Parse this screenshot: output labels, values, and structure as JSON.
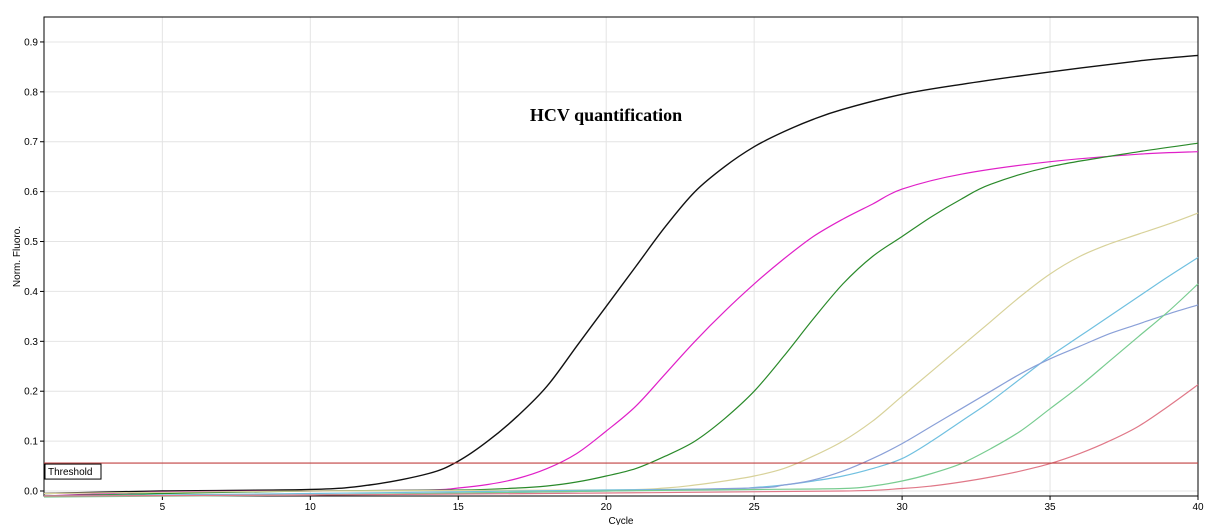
{
  "chart_data": {
    "type": "line",
    "title": "HCV quantification",
    "xlabel": "Cycle",
    "ylabel": "Norm. Fluoro.",
    "xlim": [
      1,
      40
    ],
    "ylim": [
      -0.01,
      0.95
    ],
    "xticks": [
      5,
      10,
      15,
      20,
      25,
      30,
      35,
      40
    ],
    "yticks": [
      0.0,
      0.1,
      0.2,
      0.3,
      0.4,
      0.5,
      0.6,
      0.7,
      0.8,
      0.9
    ],
    "ytick_labels": [
      "0.0",
      "0.1",
      "0.2",
      "0.3",
      "0.4",
      "0.5",
      "0.6",
      "0.7",
      "0.8",
      "0.9"
    ],
    "grid": true,
    "threshold": {
      "label": "Threshold",
      "value": 0.056,
      "color": "#c04040"
    },
    "series": [
      {
        "color": "#111111",
        "x": [
          1,
          5,
          10,
          12,
          14,
          15,
          16,
          17,
          18,
          19,
          20,
          21,
          22,
          23,
          24,
          25,
          26,
          27,
          28,
          30,
          32,
          35,
          38,
          40
        ],
        "y": [
          -0.005,
          0.0,
          0.003,
          0.012,
          0.035,
          0.06,
          0.1,
          0.15,
          0.21,
          0.29,
          0.37,
          0.45,
          0.53,
          0.6,
          0.65,
          0.69,
          0.72,
          0.745,
          0.765,
          0.795,
          0.815,
          0.84,
          0.862,
          0.873
        ]
      },
      {
        "color": "#e020c8",
        "x": [
          1,
          5,
          10,
          14,
          15,
          16,
          17,
          18,
          19,
          20,
          21,
          22,
          23,
          24,
          25,
          26,
          27,
          28,
          29,
          30,
          32,
          35,
          38,
          40
        ],
        "y": [
          -0.01,
          -0.002,
          0.0,
          0.002,
          0.006,
          0.013,
          0.025,
          0.045,
          0.075,
          0.12,
          0.17,
          0.235,
          0.3,
          0.36,
          0.415,
          0.465,
          0.51,
          0.545,
          0.575,
          0.605,
          0.635,
          0.66,
          0.675,
          0.68
        ]
      },
      {
        "color": "#2a8a2a",
        "x": [
          1,
          5,
          10,
          15,
          17,
          18,
          19,
          20,
          21,
          22,
          23,
          24,
          25,
          26,
          27,
          28,
          29,
          30,
          31,
          32,
          33,
          35,
          38,
          40
        ],
        "y": [
          -0.01,
          -0.005,
          0.0,
          0.002,
          0.006,
          0.01,
          0.018,
          0.03,
          0.045,
          0.07,
          0.1,
          0.145,
          0.2,
          0.27,
          0.345,
          0.415,
          0.47,
          0.51,
          0.55,
          0.585,
          0.615,
          0.65,
          0.68,
          0.697
        ]
      },
      {
        "color": "#d8d29a",
        "x": [
          1,
          10,
          20,
          22,
          23,
          24,
          25,
          26,
          27,
          28,
          29,
          30,
          31,
          32,
          33,
          34,
          35,
          36,
          37,
          38,
          39,
          40
        ],
        "y": [
          -0.005,
          0.0,
          0.002,
          0.006,
          0.012,
          0.02,
          0.03,
          0.045,
          0.07,
          0.1,
          0.14,
          0.19,
          0.24,
          0.29,
          0.34,
          0.39,
          0.435,
          0.47,
          0.495,
          0.515,
          0.535,
          0.557
        ]
      },
      {
        "color": "#70c0e0",
        "x": [
          1,
          10,
          20,
          24,
          25,
          26,
          27,
          28,
          29,
          30,
          31,
          32,
          33,
          34,
          35,
          36,
          37,
          38,
          39,
          40
        ],
        "y": [
          -0.01,
          -0.005,
          0.002,
          0.004,
          0.007,
          0.012,
          0.02,
          0.03,
          0.045,
          0.065,
          0.1,
          0.14,
          0.18,
          0.225,
          0.27,
          0.31,
          0.35,
          0.39,
          0.43,
          0.468
        ]
      },
      {
        "color": "#8aa0d8",
        "x": [
          1,
          10,
          20,
          25,
          26,
          27,
          28,
          29,
          30,
          31,
          32,
          33,
          34,
          35,
          36,
          37,
          38,
          39,
          40
        ],
        "y": [
          -0.01,
          -0.008,
          0.0,
          0.006,
          0.012,
          0.022,
          0.04,
          0.065,
          0.095,
          0.13,
          0.165,
          0.2,
          0.235,
          0.265,
          0.29,
          0.315,
          0.335,
          0.355,
          0.373
        ]
      },
      {
        "color": "#78cc90",
        "x": [
          1,
          10,
          20,
          25,
          28,
          29,
          30,
          31,
          32,
          33,
          34,
          35,
          36,
          37,
          38,
          39,
          40
        ],
        "y": [
          -0.012,
          -0.008,
          0.0,
          0.003,
          0.005,
          0.01,
          0.02,
          0.035,
          0.055,
          0.085,
          0.12,
          0.165,
          0.21,
          0.26,
          0.31,
          0.36,
          0.415
        ]
      },
      {
        "color": "#e07888",
        "x": [
          1,
          10,
          20,
          28,
          30,
          31,
          32,
          33,
          34,
          35,
          36,
          37,
          38,
          39,
          40
        ],
        "y": [
          -0.01,
          -0.008,
          -0.004,
          0.0,
          0.005,
          0.01,
          0.018,
          0.028,
          0.04,
          0.055,
          0.075,
          0.1,
          0.13,
          0.17,
          0.213
        ]
      }
    ]
  }
}
